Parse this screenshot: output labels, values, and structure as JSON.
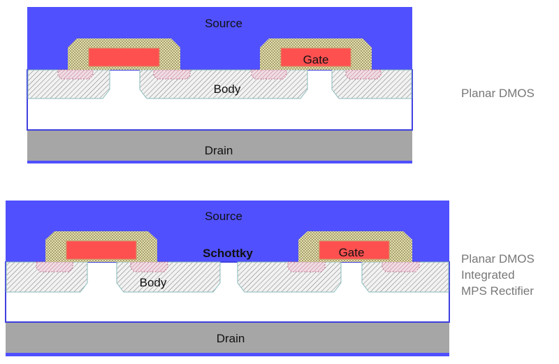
{
  "colors": {
    "source": "#5050ff",
    "drain": "#a6a6a6",
    "gate": "#ff5050",
    "oxide": "#d8d8a0",
    "body_hatch": "#888888",
    "nplus": "#d08090"
  },
  "top": {
    "source": "Source",
    "gate": "Gate",
    "body": "Body",
    "drain": "Drain",
    "caption": "Planar DMOS"
  },
  "bottom": {
    "source": "Source",
    "schottky": "Schottky",
    "gate": "Gate",
    "body": "Body",
    "drain": "Drain",
    "caption": [
      "Planar DMOS",
      "Integrated",
      "MPS Rectifier"
    ]
  }
}
